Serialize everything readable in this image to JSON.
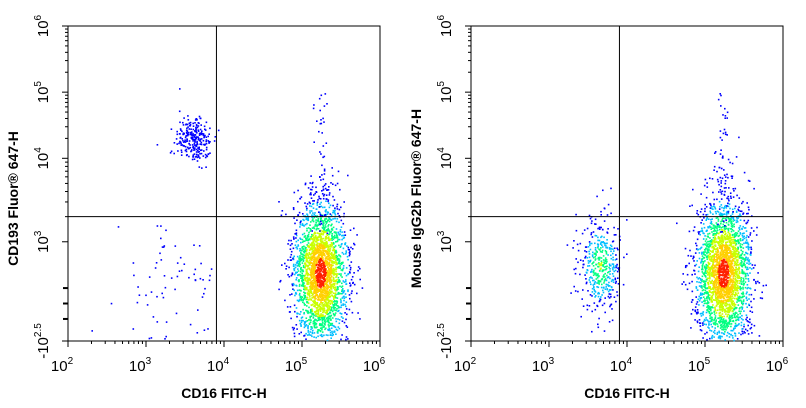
{
  "chart_data": [
    {
      "type": "scatter",
      "title": "",
      "xlabel": "CD16 FITC-H",
      "ylabel": "CD193 Fluor® 647-H",
      "xscale": "log",
      "yscale": "biexponential",
      "xlim": [
        100,
        1000000
      ],
      "ylim": [
        -316,
        1000000
      ],
      "x_ticks": [
        {
          "base": "10",
          "exp": "2"
        },
        {
          "base": "10",
          "exp": "3"
        },
        {
          "base": "10",
          "exp": "4"
        },
        {
          "base": "10",
          "exp": "5"
        },
        {
          "base": "10",
          "exp": "6"
        }
      ],
      "y_ticks": [
        {
          "base": "-10",
          "exp": "2.5"
        },
        {
          "base": "10",
          "exp": "3"
        },
        {
          "base": "10",
          "exp": "4"
        },
        {
          "base": "10",
          "exp": "5"
        },
        {
          "base": "10",
          "exp": "6"
        }
      ],
      "quadrant_gate": {
        "x": 8000,
        "y": 2000
      },
      "populations": [
        {
          "label": "CD193+ CD16- cluster",
          "x_center": 4000,
          "y_center": 20000,
          "events": 260
        },
        {
          "label": "CD193- CD16+ cluster",
          "x_center": 170000,
          "y_center": 600,
          "events": 2600
        },
        {
          "label": "CD193- CD16- scattered",
          "x_center": 2000,
          "y_center": 500,
          "events": 70
        }
      ]
    },
    {
      "type": "scatter",
      "title": "",
      "xlabel": "CD16 FITC-H",
      "ylabel": "Mouse IgG2b Fluor® 647-H",
      "xscale": "log",
      "yscale": "biexponential",
      "xlim": [
        100,
        1000000
      ],
      "ylim": [
        -316,
        1000000
      ],
      "x_ticks": [
        {
          "base": "10",
          "exp": "2"
        },
        {
          "base": "10",
          "exp": "3"
        },
        {
          "base": "10",
          "exp": "4"
        },
        {
          "base": "10",
          "exp": "5"
        },
        {
          "base": "10",
          "exp": "6"
        }
      ],
      "y_ticks": [
        {
          "base": "-10",
          "exp": "2.5"
        },
        {
          "base": "10",
          "exp": "3"
        },
        {
          "base": "10",
          "exp": "4"
        },
        {
          "base": "10",
          "exp": "5"
        },
        {
          "base": "10",
          "exp": "6"
        }
      ],
      "quadrant_gate": {
        "x": 8000,
        "y": 2000
      },
      "populations": [
        {
          "label": "CD16- cluster",
          "x_center": 4500,
          "y_center": 700,
          "events": 420
        },
        {
          "label": "CD16+ cluster",
          "x_center": 170000,
          "y_center": 600,
          "events": 2600
        }
      ]
    }
  ],
  "colormap": [
    "#0000ff",
    "#00bfff",
    "#00ff80",
    "#c8ff00",
    "#ffd000",
    "#ff2000"
  ]
}
